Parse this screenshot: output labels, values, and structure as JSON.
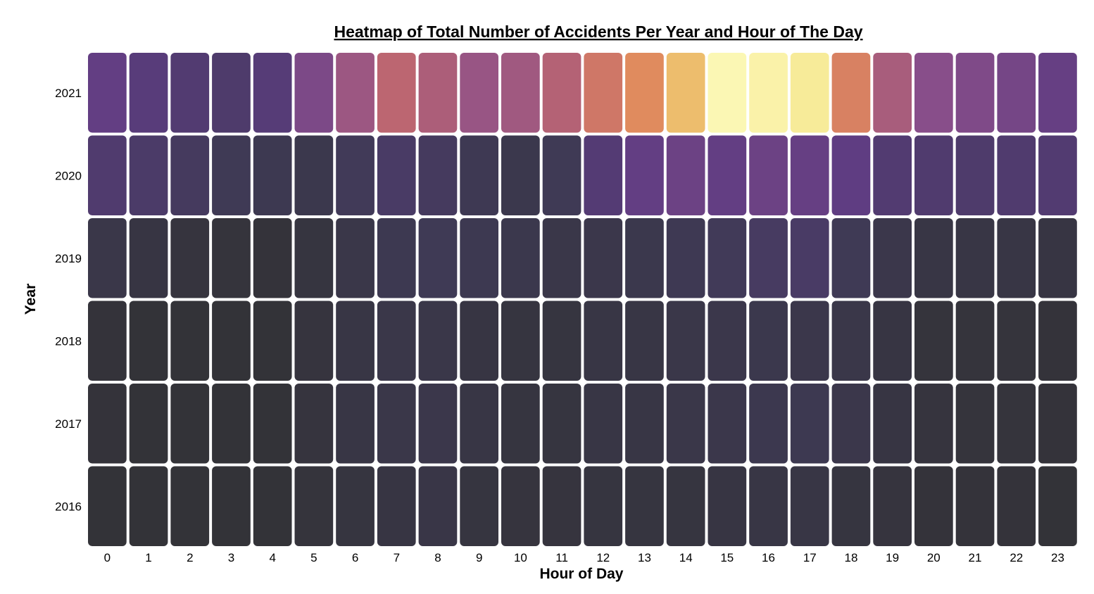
{
  "chart_data": {
    "type": "heatmap",
    "title": "Heatmap of Total Number of Accidents Per Year and Hour of The Day",
    "xlabel": "Hour of Day",
    "ylabel": "Year",
    "x_categories": [
      "0",
      "1",
      "2",
      "3",
      "4",
      "5",
      "6",
      "7",
      "8",
      "9",
      "10",
      "11",
      "12",
      "13",
      "14",
      "15",
      "16",
      "17",
      "18",
      "19",
      "20",
      "21",
      "22",
      "23"
    ],
    "y_categories": [
      "2021",
      "2020",
      "2019",
      "2018",
      "2017",
      "2016"
    ],
    "colorscale": "inferno-like (dark gray → purple → orange → pale yellow)",
    "colorscale_stops": [
      "#333338",
      "#3f3a56",
      "#5e3c82",
      "#8b4f8a",
      "#c56a6d",
      "#e38f5c",
      "#f3dc78",
      "#fdfec4"
    ],
    "relative_values": [
      [
        0.3,
        0.26,
        0.23,
        0.21,
        0.25,
        0.38,
        0.47,
        0.55,
        0.51,
        0.46,
        0.48,
        0.53,
        0.62,
        0.7,
        0.8,
        0.97,
        0.95,
        0.92,
        0.66,
        0.5,
        0.42,
        0.39,
        0.36,
        0.31
      ],
      [
        0.22,
        0.2,
        0.17,
        0.14,
        0.12,
        0.1,
        0.15,
        0.19,
        0.17,
        0.13,
        0.1,
        0.14,
        0.24,
        0.3,
        0.33,
        0.3,
        0.33,
        0.31,
        0.29,
        0.23,
        0.22,
        0.21,
        0.22,
        0.23
      ],
      [
        0.08,
        0.05,
        0.03,
        0.02,
        0.01,
        0.04,
        0.08,
        0.12,
        0.14,
        0.12,
        0.1,
        0.08,
        0.09,
        0.1,
        0.13,
        0.15,
        0.18,
        0.19,
        0.14,
        0.09,
        0.06,
        0.06,
        0.06,
        0.05
      ],
      [
        0.01,
        0.0,
        0.0,
        0.0,
        0.0,
        0.03,
        0.06,
        0.08,
        0.08,
        0.05,
        0.04,
        0.04,
        0.06,
        0.06,
        0.08,
        0.09,
        0.1,
        0.09,
        0.08,
        0.05,
        0.02,
        0.02,
        0.02,
        0.01
      ],
      [
        0.01,
        0.0,
        0.0,
        0.0,
        0.0,
        0.03,
        0.06,
        0.08,
        0.09,
        0.06,
        0.04,
        0.04,
        0.06,
        0.06,
        0.08,
        0.09,
        0.11,
        0.12,
        0.09,
        0.05,
        0.03,
        0.02,
        0.02,
        0.01
      ],
      [
        0.0,
        0.0,
        0.0,
        0.0,
        0.0,
        0.02,
        0.04,
        0.05,
        0.07,
        0.04,
        0.03,
        0.03,
        0.04,
        0.04,
        0.04,
        0.05,
        0.06,
        0.06,
        0.04,
        0.03,
        0.01,
        0.01,
        0.01,
        0.0
      ]
    ],
    "grid": false,
    "legend": "none"
  }
}
